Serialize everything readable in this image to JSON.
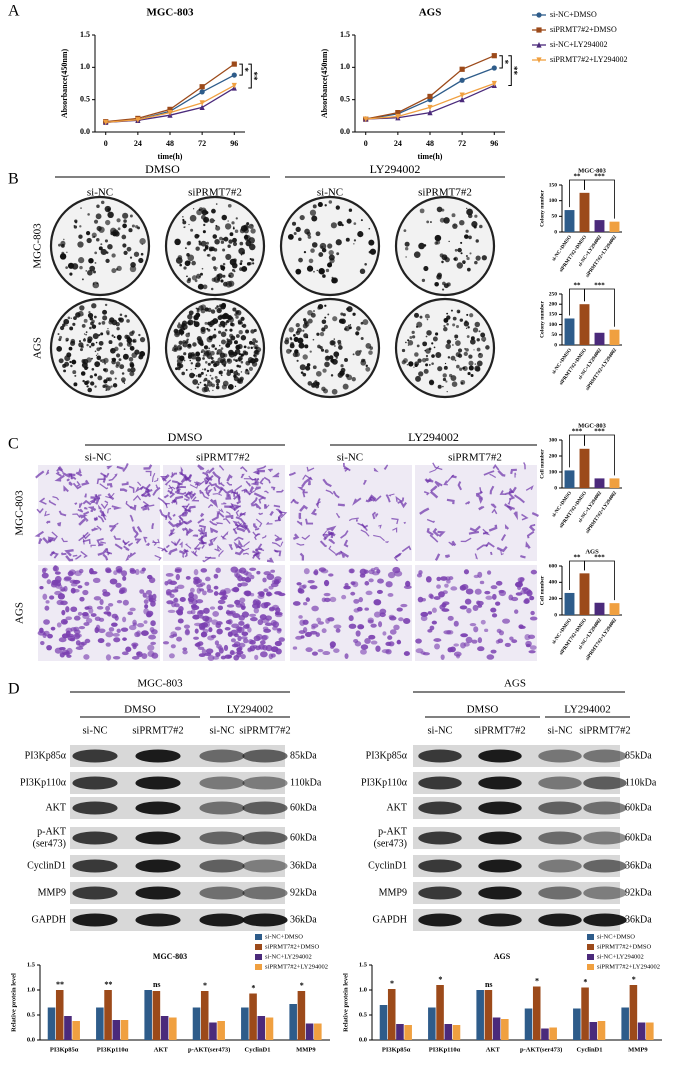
{
  "panels": [
    "A",
    "B",
    "C",
    "D"
  ],
  "chart_data": [
    {
      "type": "line",
      "title": "MGC-803",
      "xlabel": "time(h)",
      "ylabel": "Absorbance(450nm)",
      "x": [
        0,
        24,
        48,
        72,
        96
      ],
      "xlim": [
        -8,
        104
      ],
      "xticks": [
        0,
        24,
        48,
        72,
        96
      ],
      "ylim": [
        0,
        1.5
      ],
      "yticks": [
        {
          "value": 0,
          "label": "0.0"
        },
        {
          "value": 0.5,
          "label": "0.5"
        },
        {
          "value": 1,
          "label": "1.0"
        },
        {
          "value": 1.5,
          "label": "1.5"
        }
      ],
      "series": [
        {
          "color": "#2e5c8a",
          "marker": "circle",
          "values": [
            0.15,
            0.19,
            0.32,
            0.62,
            0.88
          ]
        },
        {
          "color": "#9c4a1a",
          "marker": "square",
          "values": [
            0.16,
            0.21,
            0.35,
            0.7,
            1.05
          ]
        },
        {
          "color": "#4b2a7b",
          "marker": "triangle-up",
          "values": [
            0.15,
            0.18,
            0.26,
            0.38,
            0.68
          ]
        },
        {
          "color": "#f0a040",
          "marker": "triangle-down",
          "values": [
            0.15,
            0.19,
            0.3,
            0.45,
            0.72
          ]
        }
      ],
      "comparisons": [
        {
          "label": "*",
          "between": [
            0,
            1
          ]
        },
        {
          "label": "**",
          "between": [
            1,
            2
          ]
        }
      ]
    },
    {
      "type": "line",
      "title": "AGS",
      "xlabel": "time(h)",
      "ylabel": "Absorbance(450nm)",
      "x": [
        0,
        24,
        48,
        72,
        96
      ],
      "xlim": [
        -8,
        104
      ],
      "xticks": [
        0,
        24,
        48,
        72,
        96
      ],
      "ylim": [
        0,
        1.5
      ],
      "yticks": [
        {
          "value": 0,
          "label": "0.0"
        },
        {
          "value": 0.5,
          "label": "0.5"
        },
        {
          "value": 1,
          "label": "1.0"
        },
        {
          "value": 1.5,
          "label": "1.5"
        }
      ],
      "legend": "right",
      "series": [
        {
          "name": "si-NC+DMSO",
          "color": "#2e5c8a",
          "marker": "circle",
          "values": [
            0.2,
            0.28,
            0.5,
            0.8,
            0.99
          ]
        },
        {
          "name": "siPRMT7#2+DMSO",
          "color": "#9c4a1a",
          "marker": "square",
          "values": [
            0.2,
            0.3,
            0.55,
            0.97,
            1.18
          ]
        },
        {
          "name": "si-NC+LY294002",
          "color": "#4b2a7b",
          "marker": "triangle-up",
          "values": [
            0.2,
            0.22,
            0.3,
            0.5,
            0.72
          ]
        },
        {
          "name": "siPRMT7#2+LY294002",
          "color": "#f0a040",
          "marker": "triangle-down",
          "values": [
            0.2,
            0.24,
            0.38,
            0.57,
            0.75
          ]
        }
      ],
      "comparisons": [
        {
          "label": "*",
          "between": [
            0,
            1
          ]
        },
        {
          "label": "**",
          "between": [
            1,
            2
          ]
        }
      ]
    },
    {
      "type": "bar",
      "title": "MGC-803",
      "ylabel": "Colony number",
      "categories": [
        "si-NC+DMSO",
        "siPRMT7#2+DMSO",
        "si-NC+LY294002",
        "siPRMT7#2+LY294002"
      ],
      "values": [
        70,
        125,
        38,
        33
      ],
      "colors": [
        "#2e5c8a",
        "#9c4a1a",
        "#4b2a7b",
        "#f0a040"
      ],
      "ylim": [
        0,
        150
      ],
      "yticks": [
        0,
        50,
        100,
        150
      ],
      "comparisons": [
        {
          "label": "**",
          "between": [
            0,
            1
          ]
        },
        {
          "label": "***",
          "between": [
            1,
            3
          ]
        }
      ]
    },
    {
      "type": "bar",
      "ylabel": "Colony number",
      "categories": [
        "si-NC+DMSO",
        "siPRMT7#2+DMSO",
        "si-NC+LY294002",
        "siPRMT7#2+LY294002"
      ],
      "values": [
        130,
        200,
        60,
        75
      ],
      "colors": [
        "#2e5c8a",
        "#9c4a1a",
        "#4b2a7b",
        "#f0a040"
      ],
      "ylim": [
        0,
        250
      ],
      "yticks": [
        0,
        50,
        100,
        150,
        200,
        250
      ],
      "comparisons": [
        {
          "label": "**",
          "between": [
            0,
            1
          ]
        },
        {
          "label": "***",
          "between": [
            1,
            3
          ]
        }
      ]
    },
    {
      "type": "bar",
      "title": "MGC-803",
      "ylabel": "Cell number",
      "categories": [
        "si-NC+DMSO",
        "siPRMT7#2+DMSO",
        "si-NC+LY294002",
        "siPRMT7#2+LY294002"
      ],
      "values": [
        110,
        245,
        60,
        60
      ],
      "colors": [
        "#2e5c8a",
        "#9c4a1a",
        "#4b2a7b",
        "#f0a040"
      ],
      "ylim": [
        0,
        300
      ],
      "yticks": [
        0,
        100,
        200,
        300
      ],
      "comparisons": [
        {
          "label": "***",
          "between": [
            0,
            1
          ]
        },
        {
          "label": "***",
          "between": [
            1,
            3
          ]
        }
      ]
    },
    {
      "type": "bar",
      "title": "AGS",
      "ylabel": "Cell number",
      "categories": [
        "si-NC+DMSO",
        "siPRMT7#2+DMSO",
        "si-NC+LY294002",
        "siPRMT7#2+LY294002"
      ],
      "values": [
        270,
        510,
        150,
        145
      ],
      "colors": [
        "#2e5c8a",
        "#9c4a1a",
        "#4b2a7b",
        "#f0a040"
      ],
      "ylim": [
        0,
        600
      ],
      "yticks": [
        0,
        200,
        400,
        600
      ],
      "comparisons": [
        {
          "label": "**",
          "between": [
            0,
            1
          ]
        },
        {
          "label": "***",
          "between": [
            1,
            3
          ]
        }
      ]
    },
    {
      "type": "grouped_bar",
      "title": "MGC-803",
      "ylabel": "Relative protein level",
      "legend": "top-right",
      "categories": [
        "PI3Kp85α",
        "PI3Kp110α",
        "AKT",
        "p-AKT(ser473)",
        "CyclinD1",
        "MMP9"
      ],
      "ylim": [
        0,
        1.5
      ],
      "yticks": [
        {
          "value": 0,
          "label": "0.0"
        },
        {
          "value": 0.5,
          "label": "0.5"
        },
        {
          "value": 1,
          "label": "1.0"
        },
        {
          "value": 1.5,
          "label": "1.5"
        }
      ],
      "series": [
        {
          "name": "si-NC+DMSO",
          "color": "#2e5c8a",
          "values": [
            0.65,
            0.65,
            1.0,
            0.65,
            0.65,
            0.72
          ]
        },
        {
          "name": "siPRMT7#2+DMSO",
          "color": "#9c4a1a",
          "values": [
            1.0,
            1.0,
            0.98,
            0.98,
            0.93,
            0.98
          ]
        },
        {
          "name": "si-NC+LY294002",
          "color": "#4b2a7b",
          "values": [
            0.48,
            0.4,
            0.48,
            0.35,
            0.48,
            0.33
          ]
        },
        {
          "name": "siPRMT7#2+LY294002",
          "color": "#f0a040",
          "values": [
            0.38,
            0.4,
            0.45,
            0.38,
            0.45,
            0.33
          ]
        }
      ],
      "significance": [
        "**",
        "**",
        "ns",
        "*",
        "*",
        "*"
      ]
    },
    {
      "type": "grouped_bar",
      "title": "AGS",
      "ylabel": "Relative protein level",
      "legend": "top-right",
      "categories": [
        "PI3Kp85α",
        "PI3Kp110α",
        "AKT",
        "p-AKT(ser473)",
        "CyclinD1",
        "MMP9"
      ],
      "ylim": [
        0,
        1.5
      ],
      "yticks": [
        {
          "value": 0,
          "label": "0.0"
        },
        {
          "value": 0.5,
          "label": "0.5"
        },
        {
          "value": 1,
          "label": "1.0"
        },
        {
          "value": 1.5,
          "label": "1.5"
        }
      ],
      "series": [
        {
          "name": "si-NC+DMSO",
          "color": "#2e5c8a",
          "values": [
            0.7,
            0.65,
            1.0,
            0.63,
            0.63,
            0.65
          ]
        },
        {
          "name": "siPRMT7#2+DMSO",
          "color": "#9c4a1a",
          "values": [
            1.02,
            1.1,
            1.0,
            1.07,
            1.05,
            1.1
          ]
        },
        {
          "name": "si-NC+LY294002",
          "color": "#4b2a7b",
          "values": [
            0.32,
            0.32,
            0.45,
            0.23,
            0.36,
            0.35
          ]
        },
        {
          "name": "siPRMT7#2+LY294002",
          "color": "#f0a040",
          "values": [
            0.3,
            0.3,
            0.42,
            0.25,
            0.38,
            0.35
          ]
        }
      ],
      "significance": [
        "*",
        "*",
        "ns",
        "*",
        "*",
        "*"
      ]
    }
  ],
  "colony": {
    "groups": [
      "DMSO",
      "LY294002"
    ],
    "lanes": [
      "si-NC",
      "siPRMT7#2",
      "si-NC",
      "siPRMT7#2"
    ],
    "rows": [
      "MGC-803",
      "AGS"
    ]
  },
  "transwell": {
    "groups": [
      "DMSO",
      "LY294002"
    ],
    "lanes": [
      "si-NC",
      "siPRMT7#2",
      "si-NC",
      "siPRMT7#2"
    ],
    "rows": [
      "MGC-803",
      "AGS"
    ]
  },
  "western": [
    {
      "title": "MGC-803",
      "groups": [
        "DMSO",
        "LY294002"
      ],
      "lanes": [
        "si-NC",
        "siPRMT7#2",
        "si-NC",
        "siPRMT7#2"
      ],
      "rows": [
        {
          "label": [
            "PI3Kp85α"
          ],
          "kda": "85kDa"
        },
        {
          "label": [
            "PI3Kp110α"
          ],
          "kda": "110kDa"
        },
        {
          "label": [
            "AKT"
          ],
          "kda": "60kDa"
        },
        {
          "label": [
            "p-AKT",
            "(ser473)"
          ],
          "kda": "60kDa"
        },
        {
          "label": [
            "CyclinD1"
          ],
          "kda": "36kDa"
        },
        {
          "label": [
            "MMP9"
          ],
          "kda": "92kDa"
        },
        {
          "label": [
            "GAPDH"
          ],
          "kda": "36kDa"
        }
      ]
    },
    {
      "title": "AGS",
      "groups": [
        "DMSO",
        "LY294002"
      ],
      "lanes": [
        "si-NC",
        "siPRMT7#2",
        "si-NC",
        "siPRMT7#2"
      ],
      "rows": [
        {
          "label": [
            "PI3Kp85α"
          ],
          "kda": "85kDa"
        },
        {
          "label": [
            "PI3Kp110α"
          ],
          "kda": "110kDa"
        },
        {
          "label": [
            "AKT"
          ],
          "kda": "60kDa"
        },
        {
          "label": [
            "p-AKT",
            "(ser473)"
          ],
          "kda": "60kDa"
        },
        {
          "label": [
            "CyclinD1"
          ],
          "kda": "36kDa"
        },
        {
          "label": [
            "MMP9"
          ],
          "kda": "92kDa"
        },
        {
          "label": [
            "GAPDH"
          ],
          "kda": "36kDa"
        }
      ]
    }
  ]
}
